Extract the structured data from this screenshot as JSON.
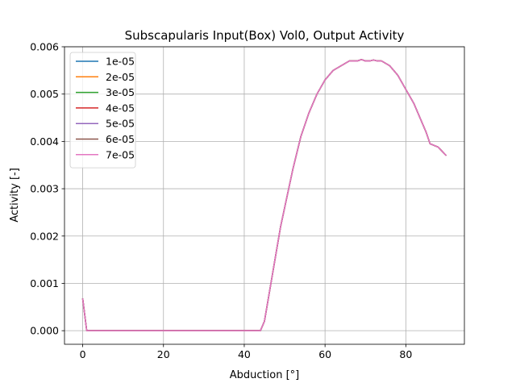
{
  "chart_data": {
    "type": "line",
    "title": "Subscapularis Input(Box) Vol0, Output Activity",
    "xlabel": "Abduction [°]",
    "ylabel": "Activity [-]",
    "xlim": [
      -4.5,
      94.5
    ],
    "ylim": [
      -0.000287,
      0.006
    ],
    "xticks": [
      0,
      20,
      40,
      60,
      80
    ],
    "yticks": [
      0.0,
      0.001,
      0.002,
      0.003,
      0.004,
      0.005,
      0.006
    ],
    "xtick_labels": [
      "0",
      "20",
      "40",
      "60",
      "80"
    ],
    "ytick_labels": [
      "0.000",
      "0.001",
      "0.002",
      "0.003",
      "0.004",
      "0.005",
      "0.006"
    ],
    "grid": true,
    "legend_position": "top-left",
    "x": [
      0,
      1,
      2,
      5,
      10,
      20,
      30,
      40,
      44,
      45,
      46,
      47,
      48,
      49,
      50,
      52,
      54,
      56,
      58,
      60,
      62,
      64,
      66,
      68,
      69,
      70,
      71,
      72,
      73,
      74,
      76,
      78,
      80,
      82,
      84,
      85,
      86,
      88,
      90
    ],
    "series": [
      {
        "name": "1e-05",
        "color": "#1f77b4"
      },
      {
        "name": "2e-05",
        "color": "#ff7f0e"
      },
      {
        "name": "3e-05",
        "color": "#2ca02c"
      },
      {
        "name": "4e-05",
        "color": "#d62728"
      },
      {
        "name": "5e-05",
        "color": "#9467bd"
      },
      {
        "name": "6e-05",
        "color": "#8c564b"
      },
      {
        "name": "7e-05",
        "color": "#e377c2"
      }
    ],
    "shared_values": [
      0.00068,
      0.0,
      0.0,
      0.0,
      0.0,
      0.0,
      0.0,
      0.0,
      0.0,
      0.0002,
      0.0007,
      0.0012,
      0.0017,
      0.0022,
      0.0026,
      0.0034,
      0.0041,
      0.0046,
      0.005,
      0.0053,
      0.0055,
      0.0056,
      0.0057,
      0.0057,
      0.00573,
      0.0057,
      0.0057,
      0.00572,
      0.0057,
      0.0057,
      0.0056,
      0.0054,
      0.0051,
      0.0048,
      0.0044,
      0.0042,
      0.00395,
      0.00388,
      0.0037
    ]
  }
}
